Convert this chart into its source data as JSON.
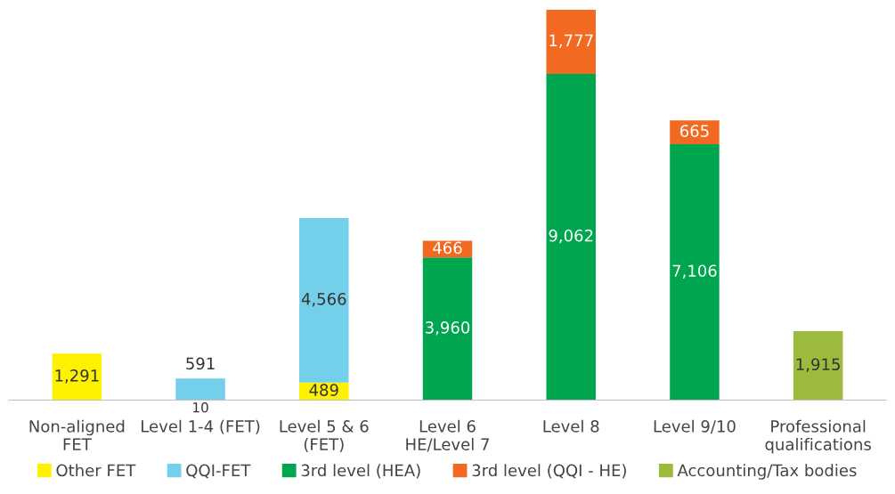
{
  "chart_data": {
    "type": "bar",
    "stacked": true,
    "legend": "bottom",
    "grid": false,
    "tick_labels": "x",
    "categories": [
      "Non-aligned\nFET",
      "Level 1-4 (FET)",
      "Level 5 & 6\n(FET)",
      "Level 6\nHE/Level 7",
      "Level 8",
      "Level 9/10",
      "Professional\nqualifications"
    ],
    "series": [
      {
        "name": "Other FET",
        "color": "#fff200",
        "values": [
          1291,
          10,
          489,
          null,
          null,
          null,
          null
        ],
        "value_labels": [
          "1,291",
          "10",
          "489",
          null,
          null,
          null,
          null
        ]
      },
      {
        "name": "QQI-FET",
        "color": "#74d0ea",
        "values": [
          null,
          591,
          4566,
          null,
          null,
          null,
          null
        ],
        "value_labels": [
          null,
          "591",
          "4,566",
          null,
          null,
          null,
          null
        ]
      },
      {
        "name": "3rd level (HEA)",
        "color": "#00a64f",
        "values": [
          null,
          null,
          null,
          3960,
          9062,
          7106,
          null
        ],
        "value_labels": [
          null,
          null,
          null,
          "3,960",
          "9,062",
          "7,106",
          null
        ]
      },
      {
        "name": "3rd level (QQI - HE)",
        "color": "#f26a21",
        "values": [
          null,
          null,
          null,
          466,
          1777,
          665,
          null
        ],
        "value_labels": [
          null,
          null,
          null,
          "466",
          "1,777",
          "665",
          null
        ]
      },
      {
        "name": "Accounting/Tax bodies",
        "color": "#9cbb3c",
        "values": [
          null,
          null,
          null,
          null,
          null,
          null,
          1915
        ],
        "value_labels": [
          null,
          null,
          null,
          null,
          null,
          null,
          "1,915"
        ]
      }
    ]
  }
}
